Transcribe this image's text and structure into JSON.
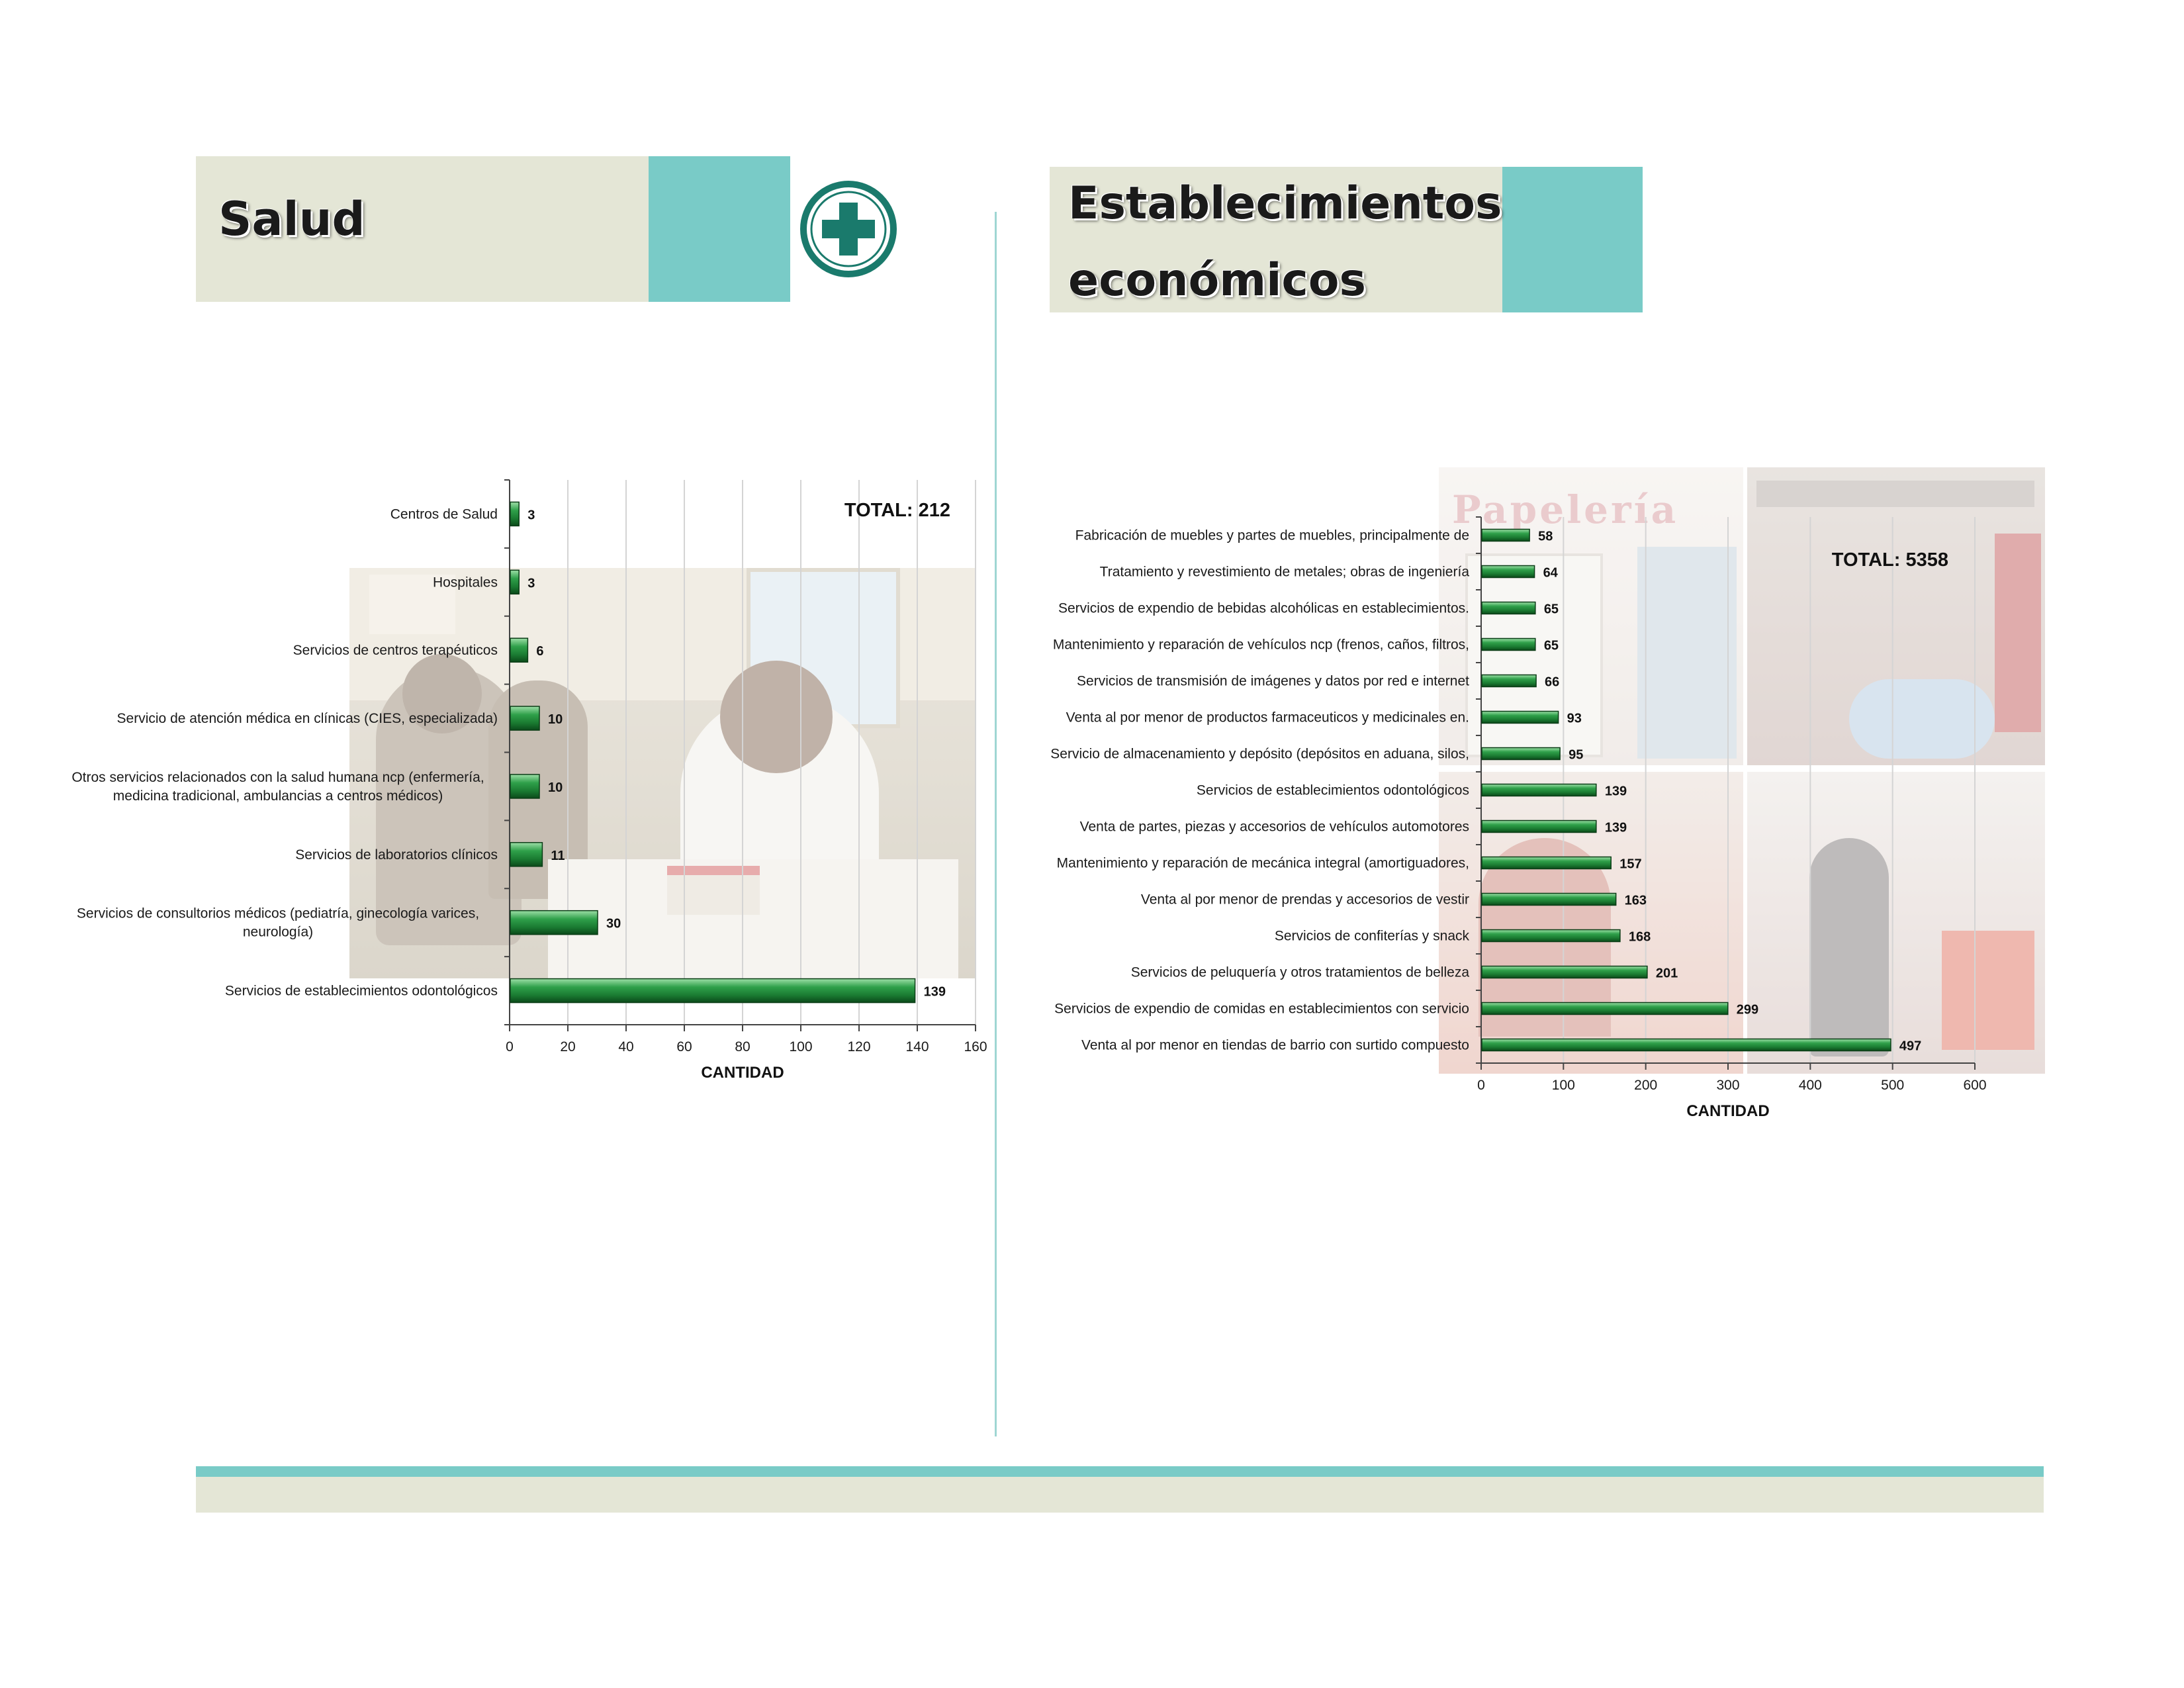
{
  "left_section": {
    "title": "Salud",
    "icon": "medical-cross-icon",
    "colors": {
      "accent": "#79cbc7",
      "box": "#e4e6d6",
      "icon": "#1a7a6c"
    }
  },
  "right_section": {
    "title_line1": "Establecimientos",
    "title_line2": "económicos"
  },
  "chart_data": [
    {
      "type": "bar",
      "orientation": "horizontal",
      "total_label": "TOTAL: 212",
      "categories": [
        "Centros de Salud",
        "Hospitales",
        "Servicios de centros terapéuticos",
        "Servicio de atención médica en clínicas (CIES, especializada)",
        "Otros servicios relacionados con la salud humana ncp (enfermería, medicina tradicional, ambulancias a centros médicos)",
        "Servicios de laboratorios clínicos",
        "Servicios de consultorios médicos (pediatría, ginecología varices, neurología)",
        "Servicios de establecimientos odontológicos"
      ],
      "category_lines": [
        [
          "Centros de Salud"
        ],
        [
          "Hospitales"
        ],
        [
          "Servicios de centros terapéuticos"
        ],
        [
          "Servicio de atención médica en clínicas (CIES, especializada)"
        ],
        [
          "Otros servicios relacionados con la salud humana ncp (enfermería,",
          "medicina tradicional, ambulancias a centros médicos)"
        ],
        [
          "Servicios de laboratorios clínicos"
        ],
        [
          "Servicios de consultorios médicos (pediatría, ginecología varices,",
          "neurología)"
        ],
        [
          "Servicios de establecimientos odontológicos"
        ]
      ],
      "values": [
        3,
        3,
        6,
        10,
        10,
        11,
        30,
        139
      ],
      "xlim": [
        0,
        160
      ],
      "xticks": [
        0,
        20,
        40,
        60,
        80,
        100,
        120,
        140,
        160
      ],
      "xlabel": "CANTIDAD",
      "grid": true,
      "bar_color": "#1e8a3a"
    },
    {
      "type": "bar",
      "orientation": "horizontal",
      "total_label": "TOTAL: 5358",
      "categories": [
        "Fabricación de muebles y partes de muebles, principalmente de",
        "Tratamiento y revestimiento de metales; obras de ingeniería",
        "Servicios de expendio de bebidas alcohólicas en establecimientos.",
        "Mantenimiento y reparación de vehículos ncp (frenos, caños, filtros,",
        "Servicios de transmisión de imágenes y datos por red e internet",
        "Venta al por menor de productos farmaceuticos y medicinales en.",
        "Servicio de almacenamiento y depósito (depósitos en aduana, silos,",
        "Servicios de establecimientos odontológicos",
        "Venta de partes, piezas y accesorios de vehículos automotores",
        "Mantenimiento y reparación de mecánica integral (amortiguadores,",
        "Venta al por menor de prendas y accesorios de vestir",
        "Servicios de confiterías y snack",
        "Servicios de peluquería y otros tratamientos de belleza",
        "Servicios de expendio de comidas en establecimientos con servicio",
        "Venta al por menor en tiendas de barrio  con surtido compuesto"
      ],
      "values": [
        58,
        64,
        65,
        65,
        66,
        93,
        95,
        139,
        139,
        157,
        163,
        168,
        201,
        299,
        497
      ],
      "xlim": [
        0,
        600
      ],
      "xticks": [
        0,
        100,
        200,
        300,
        400,
        500,
        600
      ],
      "xlabel": "CANTIDAD",
      "grid": true,
      "bar_color": "#1e8a3a"
    }
  ]
}
